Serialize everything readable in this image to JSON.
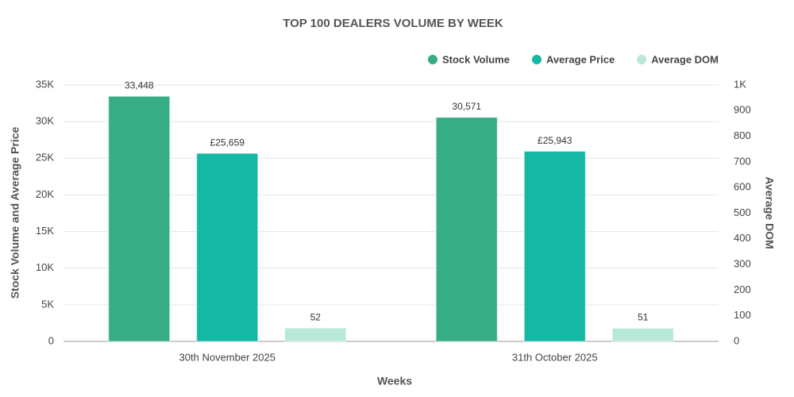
{
  "chart_data": {
    "type": "bar",
    "title": "TOP 100 DEALERS VOLUME BY WEEK",
    "xlabel": "Weeks",
    "ylabel": "Stock Volume and Average Price",
    "y2label": "Average DOM",
    "categories": [
      "30th November 2025",
      "31th October 2025"
    ],
    "series": [
      {
        "name": "Stock Volume",
        "color": "#36ad84",
        "values": [
          33448,
          30571
        ],
        "value_labels": [
          "33,448",
          "30,571"
        ]
      },
      {
        "name": "Average Price",
        "color": "#15b8a4",
        "values": [
          25659,
          25943
        ],
        "value_labels": [
          "£25,659",
          "£25,943"
        ]
      },
      {
        "name": "Average DOM",
        "color": "#b8e8d8",
        "axis": "y2",
        "values": [
          52,
          51
        ]
      }
    ],
    "ylim": [
      0,
      35000
    ],
    "yticks": [
      0,
      {
        "value": 5000,
        "label": "5K"
      },
      {
        "value": 10000,
        "label": "10K"
      },
      {
        "value": 15000,
        "label": "15K"
      },
      {
        "value": 20000,
        "label": "20K"
      },
      {
        "value": 25000,
        "label": "25K"
      },
      {
        "value": 30000,
        "label": "30K"
      },
      {
        "value": 35000,
        "label": "35K"
      }
    ],
    "y2lim": [
      0,
      1000
    ],
    "y2ticks": [
      0,
      100,
      200,
      300,
      400,
      500,
      600,
      700,
      800,
      900,
      {
        "value": 1000,
        "label": "1K"
      }
    ],
    "grid": true,
    "legend": "top-right"
  }
}
